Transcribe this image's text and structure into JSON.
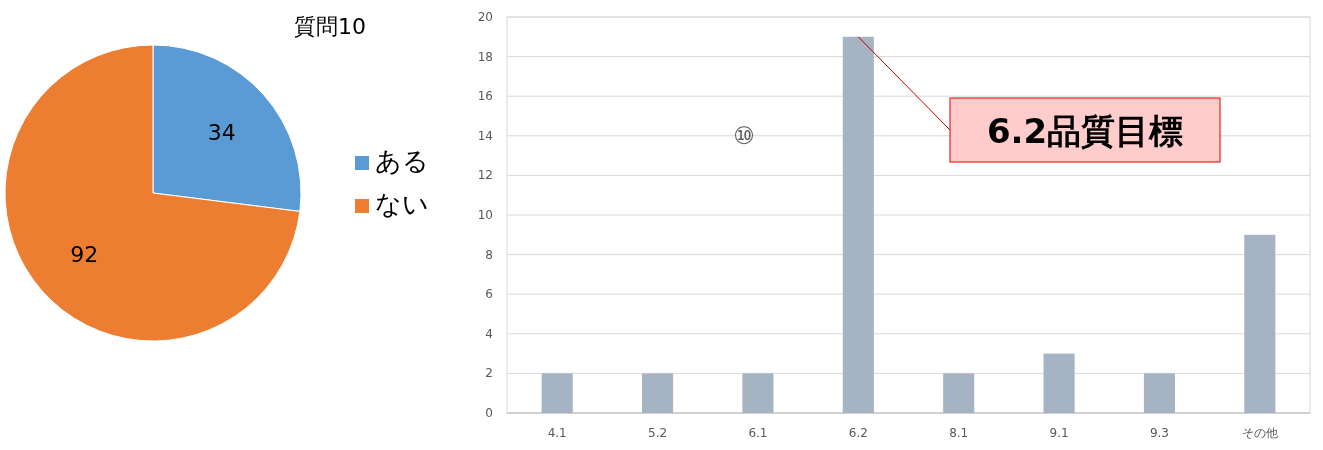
{
  "chart_data": [
    {
      "type": "pie",
      "title": "質問10",
      "categories": [
        "ある",
        "ない"
      ],
      "values": [
        34,
        92
      ],
      "colors": [
        "#5b9bd5",
        "#ed7d31"
      ],
      "data_labels": true,
      "legend": "right"
    },
    {
      "type": "bar",
      "categories": [
        "4.1",
        "5.2",
        "6.1",
        "6.2",
        "8.1",
        "9.1",
        "9.3",
        "その他"
      ],
      "values": [
        2,
        2,
        2,
        19,
        2,
        3,
        2,
        9
      ],
      "color": "#a5b3c3",
      "ylim": [
        0,
        20
      ],
      "yticks": [
        0,
        2,
        4,
        6,
        8,
        10,
        12,
        14,
        16,
        18,
        20
      ],
      "grid": "y",
      "annotations": [
        "⑩",
        {
          "text": "6.2品質目標",
          "x": "6.2",
          "y": 19
        }
      ]
    }
  ]
}
